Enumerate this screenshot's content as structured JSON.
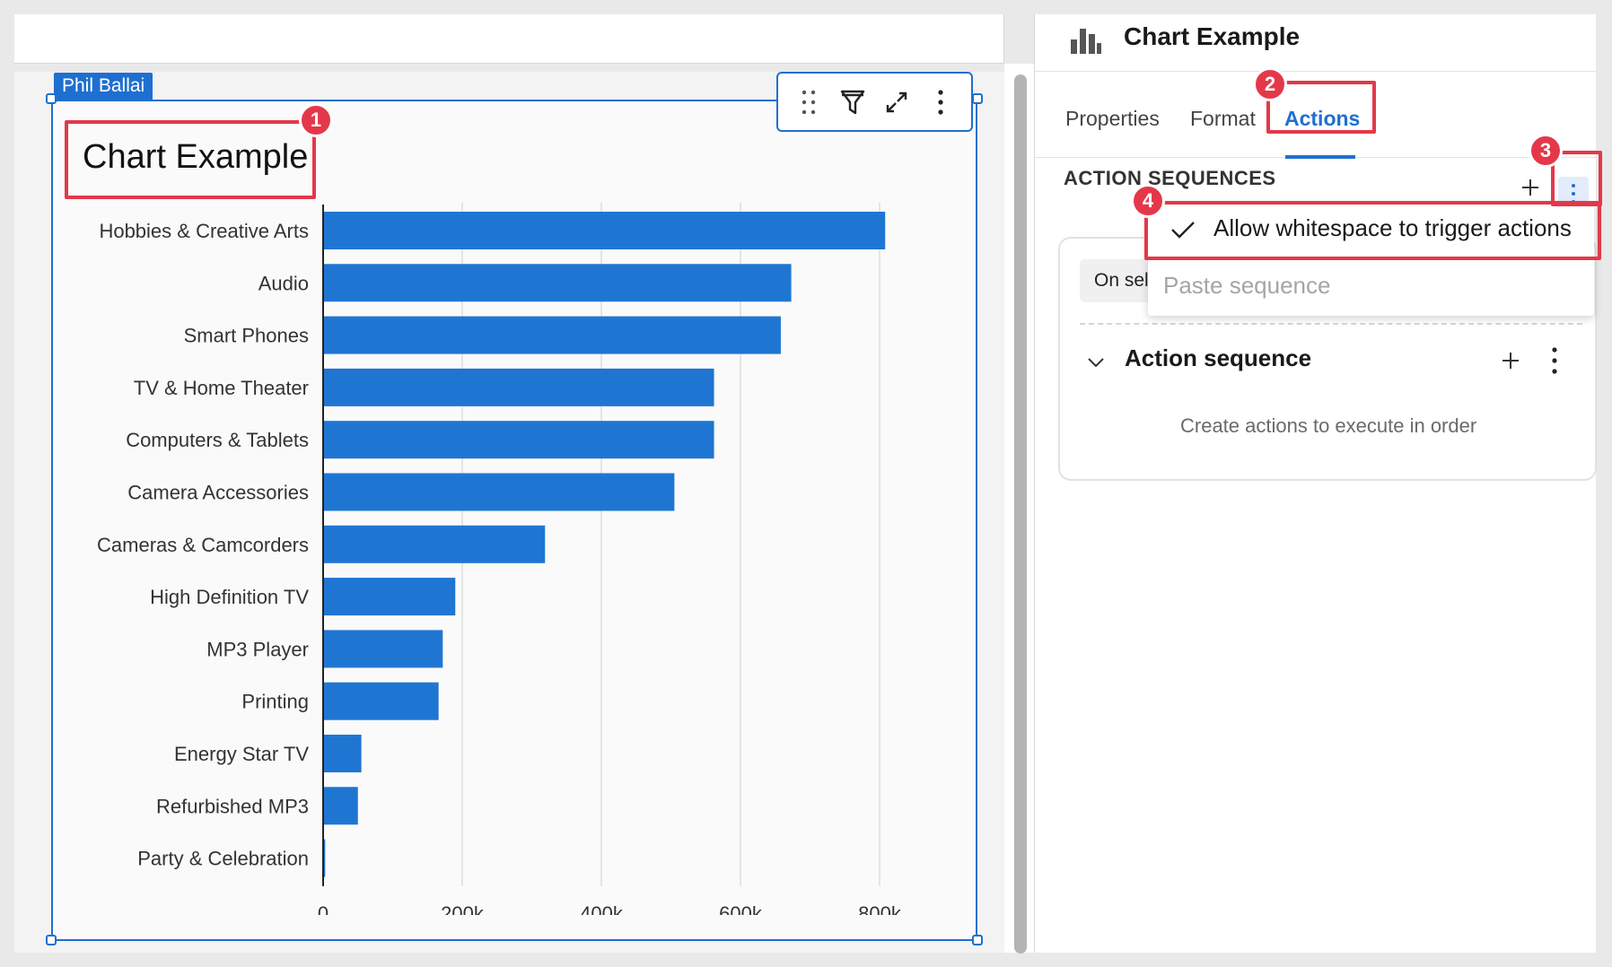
{
  "canvas": {
    "user_tag": "Phil Ballai",
    "chart_title": "Chart Example"
  },
  "toolbar": {
    "drag_icon": "drag-handle-icon",
    "filter_icon": "filter-icon",
    "expand_icon": "expand-icon",
    "more_icon": "more-vertical-icon"
  },
  "chart_data": {
    "type": "bar",
    "orientation": "horizontal",
    "categories": [
      "Hobbies & Creative Arts",
      "Audio",
      "Smart Phones",
      "TV & Home Theater",
      "Computers & Tablets",
      "Camera Accessories",
      "Cameras & Camcorders",
      "High Definition TV",
      "MP3 Player",
      "Printing",
      "Energy Star TV",
      "Refurbished MP3",
      "Party & Celebration"
    ],
    "values": [
      808000,
      673000,
      658000,
      562000,
      562000,
      505000,
      319000,
      190000,
      172000,
      166000,
      55000,
      50000,
      3000
    ],
    "x_ticks": [
      "0",
      "200k",
      "400k",
      "600k",
      "800k"
    ],
    "xlim": [
      0,
      870000
    ],
    "grid": true,
    "bar_color": "#1f76d2"
  },
  "panel": {
    "title": "Chart Example",
    "header_icon": "bar-chart-icon",
    "tabs": [
      {
        "label": "Properties",
        "active": false
      },
      {
        "label": "Format",
        "active": false
      },
      {
        "label": "Actions",
        "active": true
      }
    ],
    "section_label": "ACTION SEQUENCES",
    "trigger_chip": "On sel",
    "sequence_title": "Action sequence",
    "sequence_empty": "Create actions to execute in order"
  },
  "menu": {
    "items": [
      {
        "label": "Allow whitespace to trigger actions",
        "checked": true,
        "enabled": true
      },
      {
        "label": "Paste sequence",
        "checked": false,
        "enabled": false
      }
    ]
  },
  "annotations": {
    "badges": [
      "1",
      "2",
      "3",
      "4"
    ],
    "color": "#e4384a"
  },
  "colors": {
    "accent": "#1f6fd0"
  }
}
